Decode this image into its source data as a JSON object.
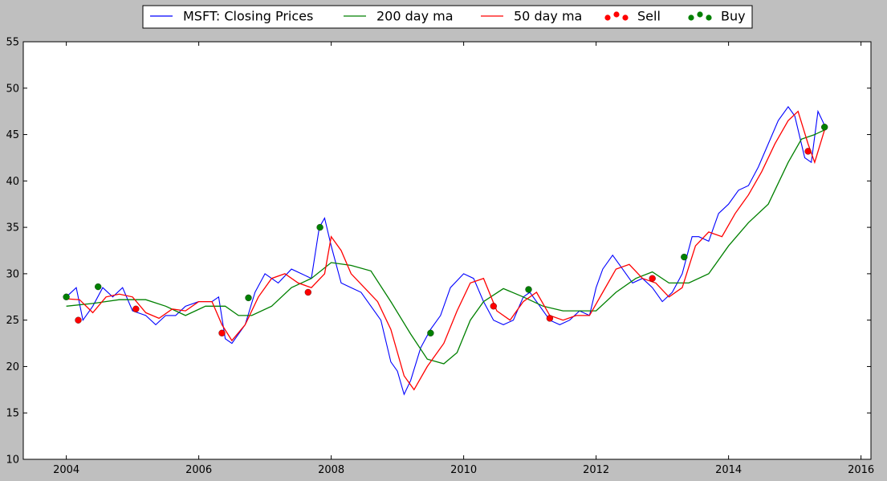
{
  "chart_data": {
    "type": "line",
    "title": "",
    "xlabel": "",
    "ylabel": "",
    "xlim": [
      2003.35,
      2016.15
    ],
    "ylim": [
      10,
      55
    ],
    "x_ticks": [
      2004,
      2006,
      2008,
      2010,
      2012,
      2014,
      2016
    ],
    "x_tick_labels": [
      "2004",
      "2006",
      "2008",
      "2010",
      "2012",
      "2014",
      "2016"
    ],
    "y_ticks": [
      10,
      15,
      20,
      25,
      30,
      35,
      40,
      45,
      50,
      55
    ],
    "y_tick_labels": [
      "10",
      "15",
      "20",
      "25",
      "30",
      "35",
      "40",
      "45",
      "50",
      "55"
    ],
    "grid": false,
    "legend_position": "top-center",
    "legend": [
      {
        "label": "MSFT: Closing Prices",
        "kind": "line",
        "color": "#0000ff"
      },
      {
        "label": "200 day ma",
        "kind": "line",
        "color": "#008000"
      },
      {
        "label": "50 day ma",
        "kind": "line",
        "color": "#ff0000"
      },
      {
        "label": "Sell",
        "kind": "marker",
        "color": "#ff0000"
      },
      {
        "label": "Buy",
        "kind": "marker",
        "color": "#008000"
      }
    ],
    "series": [
      {
        "name": "MSFT: Closing Prices",
        "color": "#0000ff",
        "x": [
          2004.0,
          2004.15,
          2004.25,
          2004.4,
          2004.55,
          2004.7,
          2004.85,
          2005.0,
          2005.2,
          2005.35,
          2005.5,
          2005.65,
          2005.8,
          2006.0,
          2006.2,
          2006.3,
          2006.4,
          2006.5,
          2006.7,
          2006.85,
          2007.0,
          2007.2,
          2007.4,
          2007.55,
          2007.7,
          2007.82,
          2007.9,
          2008.0,
          2008.15,
          2008.3,
          2008.45,
          2008.6,
          2008.75,
          2008.9,
          2009.0,
          2009.1,
          2009.2,
          2009.35,
          2009.5,
          2009.65,
          2009.8,
          2010.0,
          2010.15,
          2010.3,
          2010.45,
          2010.6,
          2010.75,
          2010.9,
          2011.0,
          2011.15,
          2011.3,
          2011.45,
          2011.6,
          2011.75,
          2011.9,
          2012.0,
          2012.1,
          2012.25,
          2012.4,
          2012.55,
          2012.7,
          2012.85,
          2013.0,
          2013.15,
          2013.3,
          2013.45,
          2013.55,
          2013.7,
          2013.85,
          2014.0,
          2014.15,
          2014.3,
          2014.45,
          2014.6,
          2014.75,
          2014.9,
          2015.0,
          2015.15,
          2015.25,
          2015.35,
          2015.45
        ],
        "values": [
          27.5,
          28.5,
          25.0,
          26.5,
          28.5,
          27.5,
          28.5,
          26.0,
          25.5,
          24.5,
          25.5,
          25.5,
          26.5,
          27.0,
          27.0,
          27.5,
          23.0,
          22.5,
          24.5,
          28.0,
          30.0,
          29.0,
          30.5,
          30.0,
          29.5,
          35.0,
          36.0,
          33.0,
          29.0,
          28.5,
          28.0,
          26.5,
          25.0,
          20.5,
          19.5,
          17.0,
          18.5,
          22.0,
          24.0,
          25.5,
          28.5,
          30.0,
          29.5,
          27.0,
          25.0,
          24.5,
          25.0,
          27.5,
          28.0,
          26.5,
          25.0,
          24.5,
          25.0,
          26.0,
          25.5,
          28.5,
          30.5,
          32.0,
          30.5,
          29.0,
          29.5,
          28.5,
          27.0,
          28.0,
          30.0,
          34.0,
          34.0,
          33.5,
          36.5,
          37.5,
          39.0,
          39.5,
          41.5,
          44.0,
          46.5,
          48.0,
          47.0,
          42.5,
          42.0,
          47.5,
          46.0
        ]
      },
      {
        "name": "200 day ma",
        "color": "#008000",
        "x": [
          2004.0,
          2004.4,
          2004.8,
          2005.2,
          2005.5,
          2005.8,
          2006.1,
          2006.4,
          2006.6,
          2006.8,
          2007.1,
          2007.4,
          2007.7,
          2008.0,
          2008.3,
          2008.6,
          2008.9,
          2009.2,
          2009.45,
          2009.7,
          2009.9,
          2010.1,
          2010.3,
          2010.6,
          2010.9,
          2011.2,
          2011.5,
          2011.8,
          2012.0,
          2012.3,
          2012.6,
          2012.85,
          2013.1,
          2013.4,
          2013.7,
          2014.0,
          2014.3,
          2014.6,
          2014.9,
          2015.1,
          2015.3,
          2015.45
        ],
        "values": [
          26.5,
          26.8,
          27.2,
          27.2,
          26.5,
          25.5,
          26.5,
          26.5,
          25.5,
          25.5,
          26.5,
          28.5,
          29.5,
          31.2,
          30.9,
          30.3,
          27.0,
          23.5,
          20.8,
          20.3,
          21.5,
          25.0,
          27.0,
          28.4,
          27.5,
          26.5,
          26.0,
          26.0,
          26.0,
          28.0,
          29.5,
          30.2,
          29.0,
          29.0,
          30.0,
          33.0,
          35.5,
          37.5,
          42.0,
          44.5,
          45.0,
          45.5
        ]
      },
      {
        "name": "50 day ma",
        "color": "#ff0000",
        "x": [
          2004.0,
          2004.2,
          2004.4,
          2004.6,
          2004.8,
          2005.0,
          2005.2,
          2005.4,
          2005.6,
          2005.8,
          2006.0,
          2006.2,
          2006.35,
          2006.5,
          2006.7,
          2006.9,
          2007.1,
          2007.3,
          2007.5,
          2007.7,
          2007.9,
          2008.0,
          2008.15,
          2008.3,
          2008.5,
          2008.7,
          2008.9,
          2009.1,
          2009.25,
          2009.45,
          2009.7,
          2009.9,
          2010.1,
          2010.3,
          2010.5,
          2010.7,
          2010.9,
          2011.1,
          2011.3,
          2011.5,
          2011.7,
          2011.9,
          2012.1,
          2012.3,
          2012.5,
          2012.7,
          2012.9,
          2013.1,
          2013.3,
          2013.5,
          2013.7,
          2013.9,
          2014.1,
          2014.3,
          2014.5,
          2014.7,
          2014.9,
          2015.05,
          2015.2,
          2015.3,
          2015.45
        ],
        "values": [
          27.3,
          27.2,
          25.8,
          27.5,
          27.8,
          27.5,
          25.8,
          25.2,
          26.2,
          26.0,
          27.0,
          27.0,
          24.5,
          22.8,
          24.5,
          27.5,
          29.5,
          30.0,
          29.0,
          28.5,
          30.0,
          34.0,
          32.5,
          30.0,
          28.5,
          27.0,
          24.0,
          19.0,
          17.5,
          20.0,
          22.5,
          26.0,
          29.0,
          29.5,
          26.0,
          25.0,
          27.0,
          28.0,
          25.5,
          25.0,
          25.5,
          25.5,
          28.0,
          30.5,
          31.0,
          29.5,
          29.0,
          27.5,
          28.5,
          33.0,
          34.5,
          34.0,
          36.5,
          38.5,
          41.0,
          44.0,
          46.5,
          47.5,
          44.0,
          42.0,
          45.5
        ]
      }
    ],
    "sell_points": {
      "name": "Sell",
      "color": "#ff0000",
      "x": [
        2004.18,
        2005.05,
        2006.35,
        2007.65,
        2010.45,
        2011.3,
        2012.85,
        2015.2
      ],
      "values": [
        25.0,
        26.2,
        23.6,
        28.0,
        26.5,
        25.2,
        29.5,
        43.2
      ]
    },
    "buy_points": {
      "name": "Buy",
      "color": "#008000",
      "x": [
        2004.0,
        2004.48,
        2006.75,
        2007.83,
        2009.5,
        2010.98,
        2013.33,
        2015.45
      ],
      "values": [
        27.5,
        28.6,
        27.4,
        35.0,
        23.6,
        28.3,
        31.8,
        45.8
      ]
    }
  }
}
